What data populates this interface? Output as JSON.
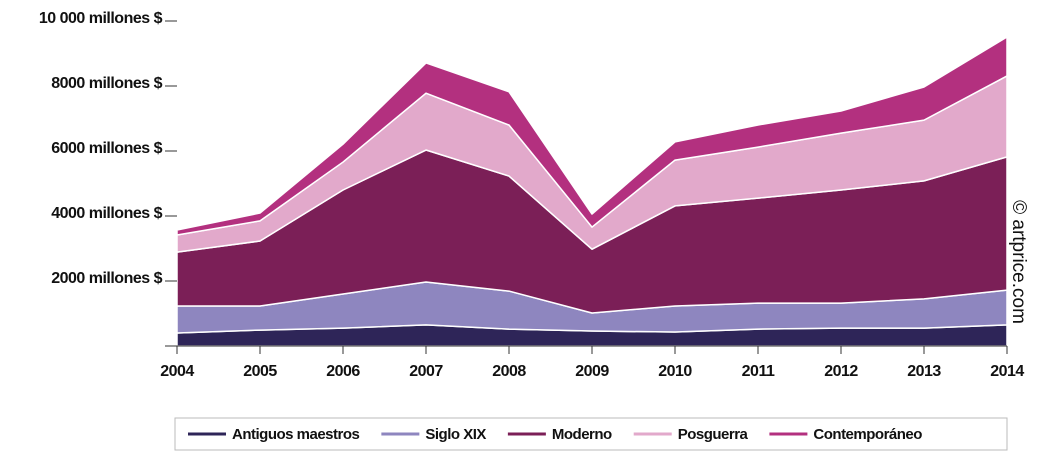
{
  "chart_data": {
    "type": "stacked_area",
    "categories": [
      "2004",
      "2005",
      "2006",
      "2007",
      "2008",
      "2009",
      "2010",
      "2011",
      "2012",
      "2013",
      "2014"
    ],
    "series": [
      {
        "name": "Antiguos maestros",
        "color": "#2e2558",
        "values": [
          400,
          490,
          550,
          650,
          520,
          460,
          430,
          520,
          550,
          550,
          650
        ]
      },
      {
        "name": "Siglo XIX",
        "color": "#8e86bf",
        "values": [
          830,
          740,
          1050,
          1320,
          1170,
          555,
          800,
          800,
          770,
          900,
          1070
        ]
      },
      {
        "name": "Moderno",
        "color": "#7b1f57",
        "values": [
          1660,
          2000,
          3200,
          4060,
          3540,
          1965,
          3080,
          3230,
          3480,
          3630,
          4100
        ]
      },
      {
        "name": "Posguerra",
        "color": "#e2a9cb",
        "values": [
          525,
          620,
          860,
          1750,
          1570,
          680,
          1410,
          1570,
          1750,
          1870,
          2490
        ]
      },
      {
        "name": "Contemporáneo",
        "color": "#b3307f",
        "values": [
          155,
          240,
          550,
          930,
          1020,
          400,
          560,
          680,
          680,
          1020,
          1200
        ]
      }
    ],
    "ylim": [
      0,
      10000
    ],
    "yticks": [
      {
        "value": 2000,
        "label": "2000 millones $"
      },
      {
        "value": 4000,
        "label": "4000 millones $"
      },
      {
        "value": 6000,
        "label": "6000 millones $"
      },
      {
        "value": 8000,
        "label": "8000 millones $"
      },
      {
        "value": 10000,
        "label": "10 000 millones $"
      }
    ],
    "watermark": "© artprice.com",
    "legend": "bottom"
  }
}
